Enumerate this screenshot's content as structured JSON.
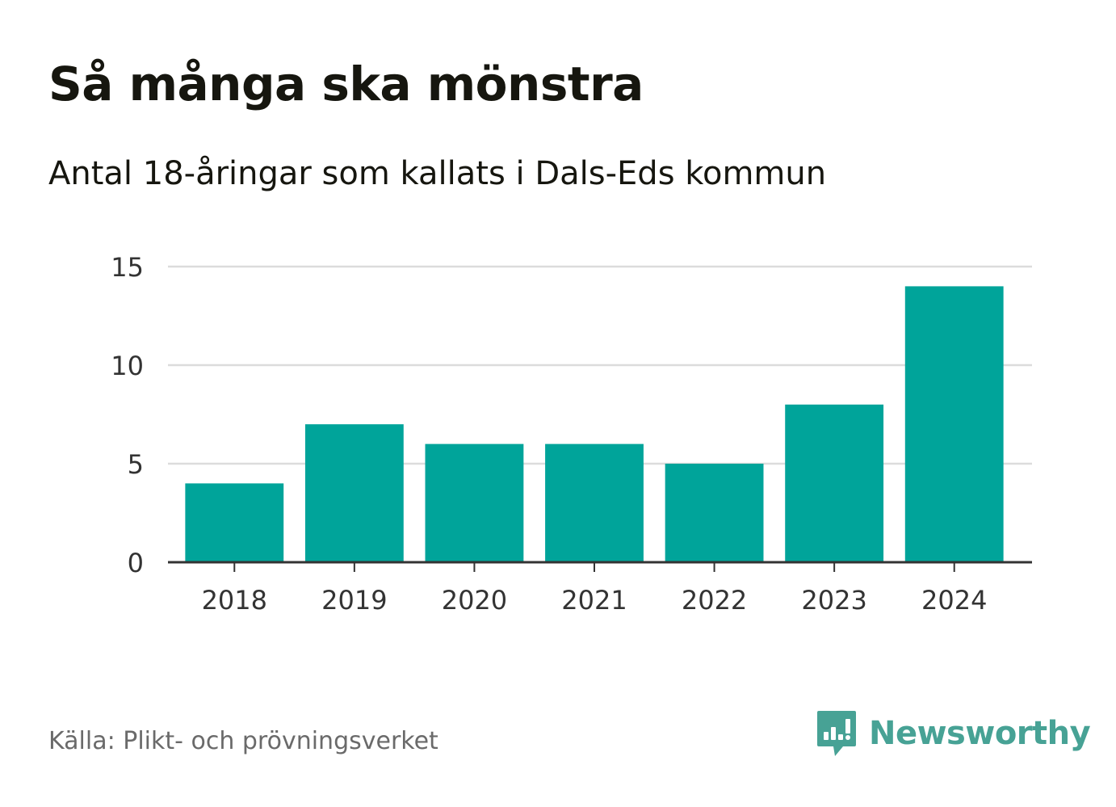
{
  "chart_data": {
    "type": "bar",
    "title": "Så många ska mönstra",
    "subtitle": "Antal 18-åringar som kallats i Dals-Eds kommun",
    "categories": [
      "2018",
      "2019",
      "2020",
      "2021",
      "2022",
      "2023",
      "2024"
    ],
    "values": [
      4,
      7,
      6,
      6,
      5,
      8,
      14
    ],
    "xlabel": "",
    "ylabel": "",
    "ylim": [
      0,
      15
    ],
    "yticks": [
      "0",
      "5",
      "10",
      "15"
    ],
    "grid": true,
    "bar_color": "#00a49a"
  },
  "footer": {
    "source": "Källa: Plikt- och prövningsverket",
    "brand": "Newsworthy",
    "brand_icon": "newsworthy-logo-icon",
    "brand_color": "#47a295"
  }
}
